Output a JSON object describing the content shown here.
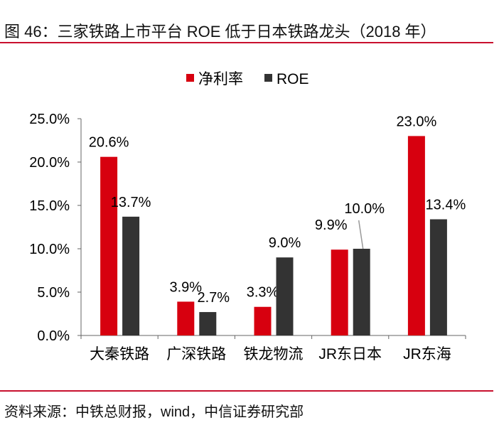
{
  "title": "图 46：三家铁路上市平台 ROE 低于日本铁路龙头（2018 年）",
  "source": "资料来源：中铁总财报，wind，中信证券研究部",
  "chart_data": {
    "type": "bar",
    "categories": [
      "大秦铁路",
      "广深铁路",
      "铁龙物流",
      "JR东日本",
      "JR东海"
    ],
    "series": [
      {
        "name": "净利率",
        "color": "#d7000f",
        "values": [
          20.6,
          3.9,
          3.3,
          9.9,
          23.0
        ],
        "labels": [
          "20.6%",
          "3.9%",
          "3.3%",
          "9.9%",
          "23.0%"
        ]
      },
      {
        "name": "ROE",
        "color": "#333333",
        "values": [
          13.7,
          2.7,
          9.0,
          10.0,
          13.4
        ],
        "labels": [
          "13.7%",
          "2.7%",
          "9.0%",
          "10.0%",
          "13.4%"
        ]
      }
    ],
    "ylim": [
      0,
      25
    ],
    "yticks": [
      0,
      5,
      10,
      15,
      20,
      25
    ],
    "ytick_labels": [
      "0.0%",
      "5.0%",
      "10.0%",
      "15.0%",
      "20.0%",
      "25.0%"
    ],
    "legend_position": "top-center",
    "grid": false
  }
}
